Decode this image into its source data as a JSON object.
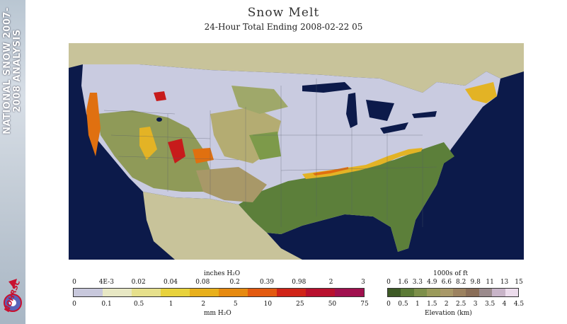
{
  "sidebar": {
    "title": "NATIONAL SNOW 2007-2008 ANALYSIS",
    "logo_text": "NOHRSC"
  },
  "header": {
    "title": "Snow Melt",
    "subtitle": "24-Hour Total Ending 2008-02-22 05"
  },
  "colors": {
    "ocean": "#0c1a4a",
    "land_outside": "#c8c39a",
    "no_melt": "#c9cbe0",
    "low_elev_green": "#5c7f3a",
    "melt_yellow": "#e3b325",
    "melt_orange": "#e07010",
    "melt_red": "#c71b1b"
  },
  "legend_snow": {
    "top_label": "inches H₂O",
    "bottom_label": "mm H₂O",
    "inches_ticks": [
      "0",
      "4E-3",
      "0.02",
      "0.04",
      "0.08",
      "0.2",
      "0.39",
      "0.98",
      "2",
      "3"
    ],
    "mm_ticks": [
      "0",
      "0.1",
      "0.5",
      "1",
      "2",
      "5",
      "10",
      "25",
      "50",
      "75"
    ],
    "colors": [
      "#c8c8dc",
      "#e8e8c4",
      "#e6e08c",
      "#e8d23c",
      "#e8b01c",
      "#e68a10",
      "#e35a10",
      "#d02418",
      "#b8102e",
      "#a0104e"
    ]
  },
  "legend_elevation": {
    "top_label": "1000s of ft",
    "bottom_label": "Elevation (km)",
    "ft_ticks": [
      "0",
      "1.6",
      "3.3",
      "4.9",
      "6.6",
      "8.2",
      "9.8",
      "11",
      "13",
      "15"
    ],
    "km_ticks": [
      "0",
      "0.5",
      "1",
      "1.5",
      "2",
      "2.5",
      "3",
      "3.5",
      "4",
      "4.5"
    ],
    "colors": [
      "#3e5a26",
      "#5c7a36",
      "#7d8f4a",
      "#9a9a5a",
      "#a89868",
      "#9c8260",
      "#8a6e58",
      "#9a8a8c",
      "#c8b4c8",
      "#ecdcec"
    ]
  }
}
